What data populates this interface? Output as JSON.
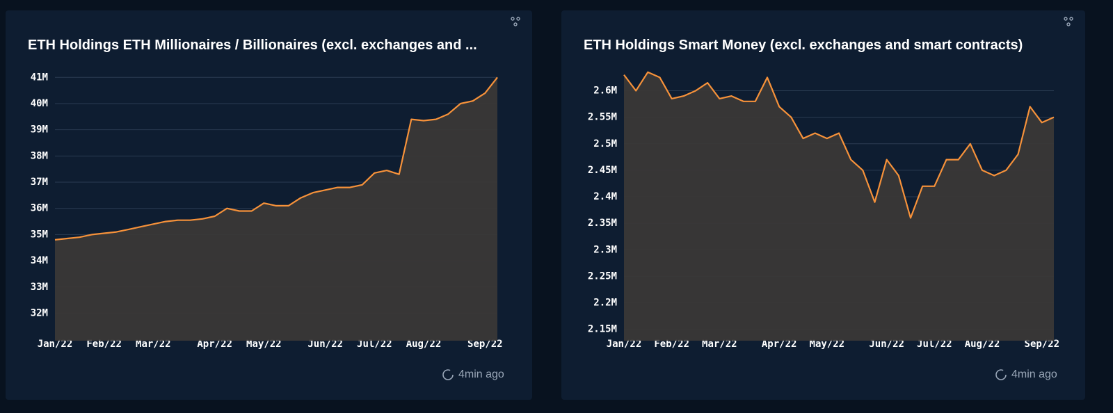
{
  "chart_data": [
    {
      "type": "line",
      "title": "ETH Holdings ETH Millionaires / Billionaires (excl. exchanges and ...",
      "updated": "4min ago",
      "categories": [
        "Jan/22",
        null,
        null,
        null,
        "Feb/22",
        null,
        null,
        null,
        "Mar/22",
        null,
        null,
        null,
        null,
        "Apr/22",
        null,
        null,
        null,
        "May/22",
        null,
        null,
        null,
        null,
        "Jun/22",
        null,
        null,
        null,
        "Jul/22",
        null,
        null,
        null,
        "Aug/22",
        null,
        null,
        null,
        null,
        "Sep/22",
        null
      ],
      "series": [
        {
          "name": "ETH Holdings",
          "color": "#f7923a",
          "values": [
            34.8,
            34.85,
            34.9,
            35.0,
            35.05,
            35.1,
            35.2,
            35.3,
            35.4,
            35.5,
            35.55,
            35.55,
            35.6,
            35.7,
            36.0,
            35.9,
            35.9,
            36.2,
            36.1,
            36.1,
            36.4,
            36.6,
            36.7,
            36.8,
            36.8,
            36.9,
            37.35,
            37.45,
            37.3,
            39.4,
            39.35,
            39.4,
            39.6,
            40.0,
            40.1,
            40.4,
            41.0
          ]
        }
      ],
      "ylim": [
        30.95,
        41.3
      ],
      "yticks": [
        {
          "value": 32,
          "label": "32M"
        },
        {
          "value": 33,
          "label": "33M"
        },
        {
          "value": 34,
          "label": "34M"
        },
        {
          "value": 35,
          "label": "35M"
        },
        {
          "value": 36,
          "label": "36M"
        },
        {
          "value": 37,
          "label": "37M"
        },
        {
          "value": 38,
          "label": "38M"
        },
        {
          "value": 39,
          "label": "39M"
        },
        {
          "value": 40,
          "label": "40M"
        },
        {
          "value": 41,
          "label": "41M"
        }
      ],
      "grid": true
    },
    {
      "type": "line",
      "title": "ETH Holdings Smart Money (excl. exchanges and smart contracts)",
      "updated": "4min ago",
      "categories": [
        "Jan/22",
        null,
        null,
        null,
        "Feb/22",
        null,
        null,
        null,
        "Mar/22",
        null,
        null,
        null,
        null,
        "Apr/22",
        null,
        null,
        null,
        "May/22",
        null,
        null,
        null,
        null,
        "Jun/22",
        null,
        null,
        null,
        "Jul/22",
        null,
        null,
        null,
        "Aug/22",
        null,
        null,
        null,
        null,
        "Sep/22",
        null
      ],
      "series": [
        {
          "name": "ETH Holdings",
          "color": "#f7923a",
          "values": [
            2.63,
            2.6,
            2.635,
            2.625,
            2.585,
            2.59,
            2.6,
            2.615,
            2.585,
            2.59,
            2.58,
            2.58,
            2.625,
            2.57,
            2.55,
            2.51,
            2.52,
            2.51,
            2.52,
            2.47,
            2.45,
            2.39,
            2.47,
            2.44,
            2.36,
            2.42,
            2.42,
            2.47,
            2.47,
            2.5,
            2.45,
            2.44,
            2.45,
            2.48,
            2.57,
            2.54,
            2.55
          ]
        }
      ],
      "ylim": [
        2.1286,
        2.64
      ],
      "yticks": [
        {
          "value": 2.15,
          "label": "2.15M"
        },
        {
          "value": 2.2,
          "label": "2.2M"
        },
        {
          "value": 2.25,
          "label": "2.25M"
        },
        {
          "value": 2.3,
          "label": "2.3M"
        },
        {
          "value": 2.35,
          "label": "2.35M"
        },
        {
          "value": 2.4,
          "label": "2.4M"
        },
        {
          "value": 2.45,
          "label": "2.45M"
        },
        {
          "value": 2.5,
          "label": "2.5M"
        },
        {
          "value": 2.55,
          "label": "2.55M"
        },
        {
          "value": 2.6,
          "label": "2.6M"
        }
      ],
      "grid": true
    }
  ]
}
